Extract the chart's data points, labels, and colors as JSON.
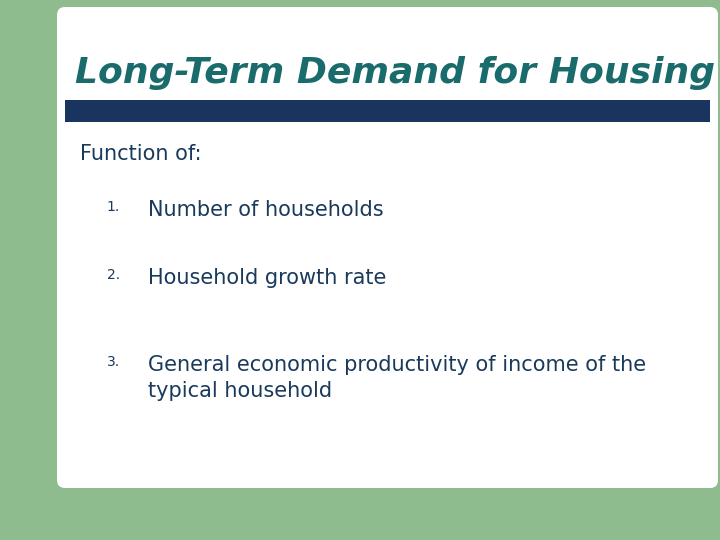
{
  "title": "Long-Term Demand for Housing",
  "title_color": "#1a6b6b",
  "title_fontsize": 26,
  "title_style": "italic",
  "title_weight": "bold",
  "subtitle": "Function of:",
  "subtitle_color": "#1a3a5c",
  "subtitle_fontsize": 15,
  "items": [
    "Number of households",
    "Household growth rate",
    "General economic productivity of income of the\ntypical household"
  ],
  "item_color": "#1a3a5c",
  "item_fontsize": 15,
  "number_fontsize": 10,
  "bg_color": "#ffffff",
  "green_rect_color": "#8fbc8f",
  "bar_color": "#1a3460",
  "fig_width": 7.2,
  "fig_height": 5.4
}
